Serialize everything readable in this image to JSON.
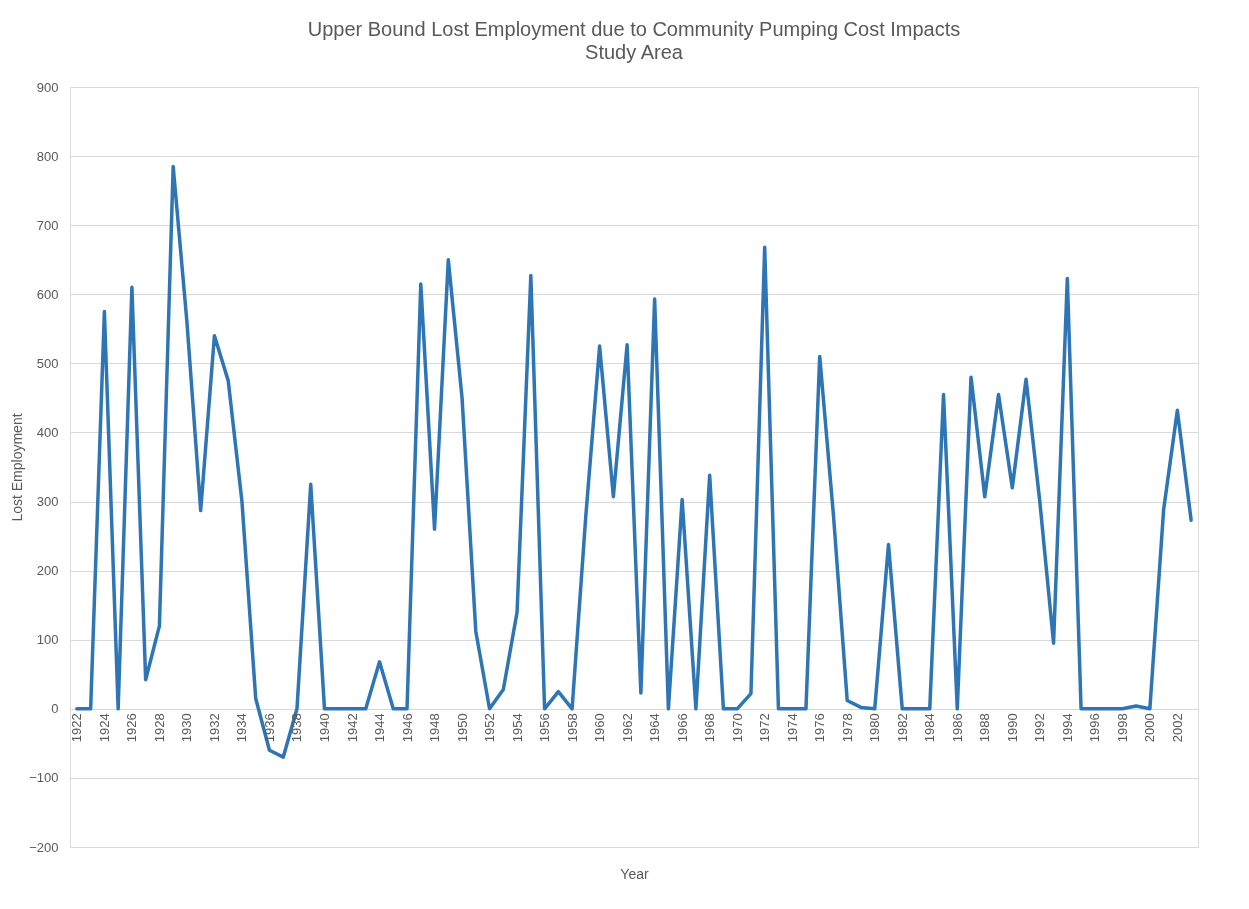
{
  "chart_data": {
    "type": "line",
    "title": "Upper Bound Lost Employment due to Community Pumping Cost Impacts",
    "subtitle": "Study Area",
    "xlabel": "Year",
    "ylabel": "Lost Employment",
    "categories": [
      "1922",
      null,
      "1924",
      null,
      "1926",
      null,
      "1928",
      null,
      "1930",
      null,
      "1932",
      null,
      "1934",
      null,
      "1936",
      null,
      "1938",
      null,
      "1940",
      null,
      "1942",
      null,
      "1944",
      null,
      "1946",
      null,
      "1948",
      null,
      "1950",
      null,
      "1952",
      null,
      "1954",
      null,
      "1956",
      null,
      "1958",
      null,
      "1960",
      null,
      "1962",
      null,
      "1964",
      null,
      "1966",
      null,
      "1968",
      null,
      "1970",
      null,
      "1972",
      null,
      "1974",
      null,
      "1976",
      null,
      "1978",
      null,
      "1980",
      null,
      "1982",
      null,
      "1984",
      null,
      "1986",
      null,
      "1988",
      null,
      "1990",
      null,
      "1992",
      null,
      "1994",
      null,
      "1996",
      null,
      "1998",
      null,
      "2000",
      null,
      "2002",
      null
    ],
    "series": [
      {
        "color": "#2e75b6",
        "values": [
          0,
          0,
          575,
          0,
          610,
          42,
          120,
          785,
          560,
          287,
          540,
          475,
          300,
          15,
          -60,
          -70,
          0,
          325,
          0,
          0,
          0,
          0,
          68,
          0,
          0,
          615,
          260,
          650,
          450,
          112,
          0,
          28,
          140,
          627,
          0,
          25,
          0,
          280,
          525,
          307,
          527,
          23,
          593,
          0,
          303,
          0,
          338,
          0,
          0,
          22,
          668,
          0,
          0,
          0,
          510,
          280,
          12,
          2,
          0,
          238,
          0,
          0,
          0,
          455,
          0,
          480,
          307,
          455,
          320,
          477,
          300,
          95,
          623,
          0,
          0,
          0,
          0,
          4,
          0,
          288,
          432,
          273
        ]
      }
    ],
    "ylim": [
      -200,
      900
    ],
    "yticks": [
      -200,
      -100,
      0,
      100,
      200,
      300,
      400,
      500,
      600,
      700,
      800,
      900
    ],
    "grid": "y"
  }
}
